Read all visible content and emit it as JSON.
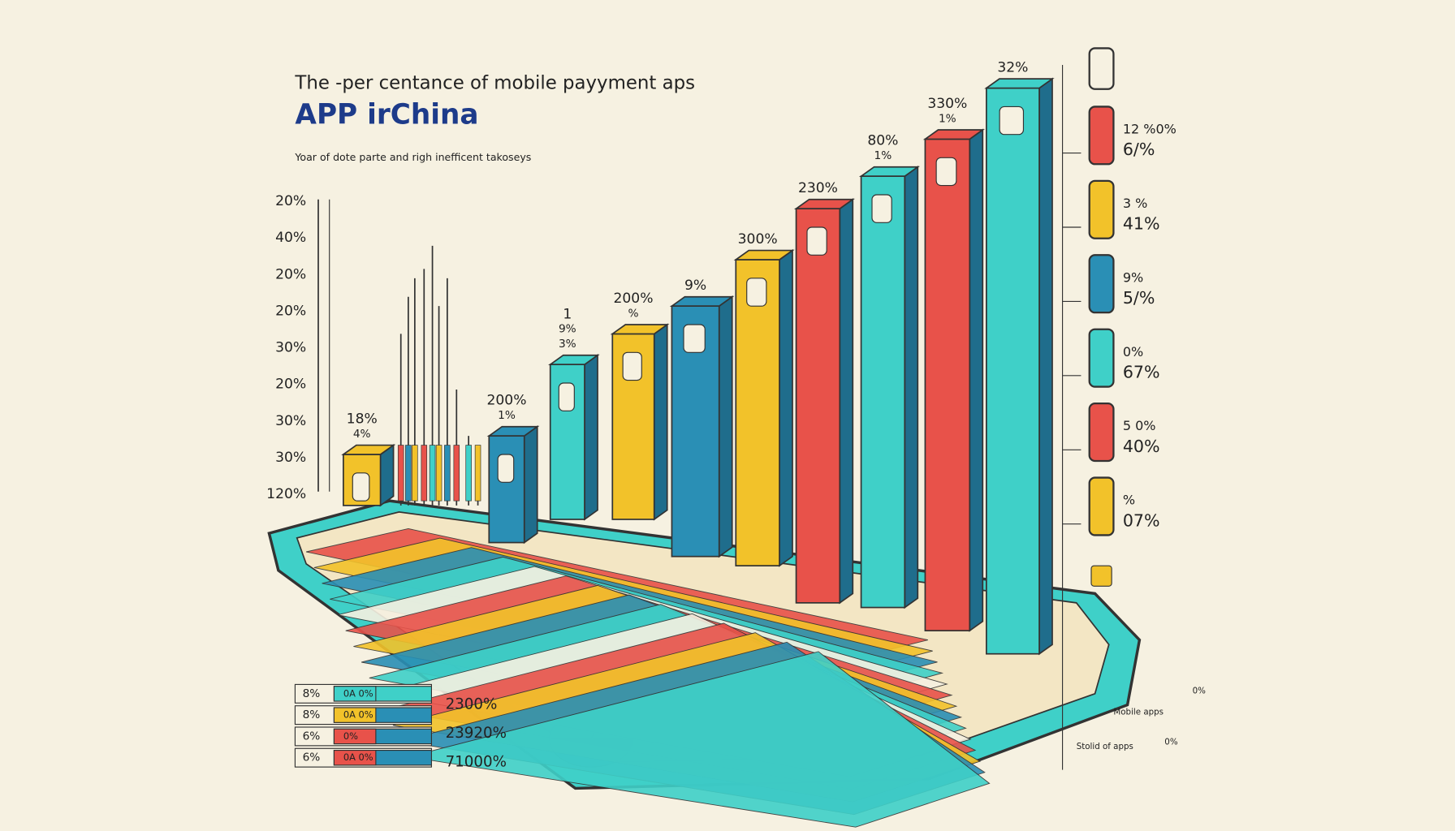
{
  "title": {
    "line1": "The -per centance of  mobile payyment aps",
    "line2": "APP irChina"
  },
  "subtitle": "Yoar of dote parte and righ inefficent takoseys",
  "y_axis_labels": [
    "20%",
    "40%",
    "20%",
    "20%",
    "30%",
    "20%",
    "30%",
    "30%",
    "120%"
  ],
  "bar_labels": [
    [
      "18%",
      "4%"
    ],
    [
      "200%",
      "1%"
    ],
    [
      "1",
      "9%",
      "3%"
    ],
    [
      "200%",
      "%"
    ],
    [
      "9%"
    ],
    [
      "300%"
    ],
    [
      "230%"
    ],
    [
      "80%",
      "1%"
    ],
    [
      "330%",
      "1%"
    ],
    [
      "32%"
    ]
  ],
  "legend": [
    [
      "12 %0%",
      "6/%"
    ],
    [
      "3 %",
      "41%"
    ],
    [
      "9%",
      "5/%"
    ],
    [
      "0%",
      "67%"
    ],
    [
      "5 0%",
      "40%"
    ],
    [
      "%",
      "07%"
    ]
  ],
  "table": {
    "rows": [
      {
        "left": "8%",
        "mid": "0A 0%"
      },
      {
        "left": "8%",
        "mid": "0A 0%"
      },
      {
        "left": "6%",
        "mid": "0%"
      },
      {
        "left": "6%",
        "mid": "0A 0%"
      }
    ],
    "totals": [
      "2300%",
      "23920%",
      "71000%"
    ]
  },
  "notes": {
    "apps": "Mobile apps",
    "stolid": "Stolid of apps",
    "pct_a": "0%",
    "pct_b": "0%"
  }
}
